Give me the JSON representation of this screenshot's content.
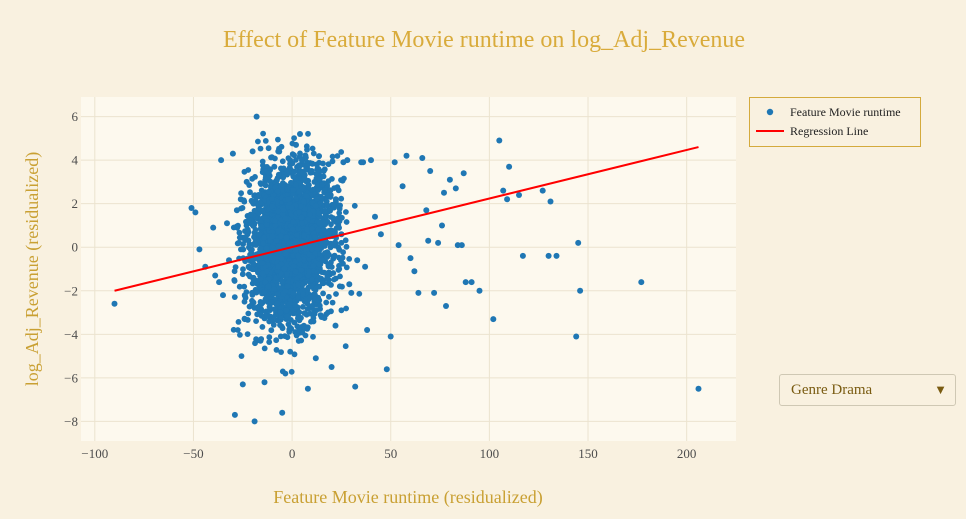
{
  "chart_data": {
    "type": "scatter",
    "title": "Effect of Feature Movie runtime on log_Adj_Revenue",
    "xlabel": "Feature Movie runtime (residualized)",
    "ylabel": "log_Adj_Revenue (residualized)",
    "xlim": [
      -107,
      225
    ],
    "ylim": [
      -8.9,
      6.9
    ],
    "xticks": [
      -100,
      -50,
      0,
      50,
      100,
      150,
      200
    ],
    "xtick_labels": [
      "−100",
      "−50",
      "0",
      "50",
      "100",
      "150",
      "200"
    ],
    "yticks": [
      -8,
      -6,
      -4,
      -2,
      0,
      2,
      4,
      6
    ],
    "ytick_labels": [
      "−8",
      "−6",
      "−4",
      "−2",
      "0",
      "2",
      "4",
      "6"
    ],
    "grid": true,
    "legend_position": "top-right",
    "series": [
      {
        "name": "Feature Movie runtime",
        "kind": "markers",
        "color": "#1f77b4",
        "x": [
          -90,
          -51,
          -49,
          -47,
          -44,
          -40,
          -39,
          -37,
          -36,
          -35,
          -33,
          -32,
          -30,
          -29,
          -27,
          -26,
          -25,
          -24,
          -23,
          -22,
          -21,
          -20,
          -19,
          -18,
          -17,
          -16,
          -14,
          -12,
          -10,
          -9,
          -7,
          -5,
          -3,
          -1,
          2,
          4,
          6,
          8,
          10,
          12,
          14,
          16,
          18,
          20,
          22,
          24,
          26,
          28,
          30,
          32,
          33,
          35,
          36,
          38,
          40,
          42,
          45,
          48,
          50,
          52,
          54,
          56,
          58,
          60,
          62,
          64,
          66,
          68,
          69,
          70,
          72,
          74,
          76,
          77,
          78,
          80,
          83,
          84,
          86,
          87,
          88,
          91,
          95,
          102,
          105,
          107,
          109,
          110,
          115,
          117,
          127,
          130,
          131,
          134,
          144,
          145,
          146,
          177,
          206,
          -10,
          -15,
          5,
          3,
          -2,
          9,
          25,
          37,
          -28,
          -6,
          12,
          29
        ],
        "y": [
          -2.6,
          1.8,
          1.6,
          -0.1,
          -0.9,
          0.9,
          -1.3,
          -1.6,
          4.0,
          -2.2,
          1.1,
          -0.6,
          4.3,
          -7.7,
          0.2,
          2.2,
          -6.3,
          -3.3,
          3.0,
          -0.9,
          1.5,
          4.4,
          -8.0,
          6.0,
          2.4,
          -4.3,
          -6.2,
          -1.8,
          0.7,
          3.7,
          4.4,
          -7.6,
          -2.9,
          4.0,
          4.7,
          5.2,
          2.1,
          -6.5,
          3.5,
          -5.1,
          -0.8,
          3.5,
          2.4,
          -5.5,
          -3.6,
          1.2,
          3.9,
          4.0,
          -2.1,
          -6.4,
          -0.6,
          3.9,
          3.9,
          -3.8,
          4.0,
          1.4,
          0.6,
          -5.6,
          -4.1,
          3.9,
          0.1,
          2.8,
          4.2,
          -0.5,
          -1.1,
          -2.1,
          4.1,
          1.7,
          0.3,
          3.5,
          -2.1,
          0.2,
          1.0,
          2.5,
          -2.7,
          3.1,
          2.7,
          0.1,
          0.1,
          3.4,
          -1.6,
          -1.6,
          -2.0,
          -3.3,
          4.9,
          2.6,
          2.2,
          3.7,
          2.4,
          -0.4,
          2.6,
          -0.4,
          2.1,
          -0.4,
          -4.1,
          0.2,
          -2.0,
          -1.6,
          -6.5,
          0.5,
          -1.2,
          1.1,
          -0.4,
          2.2,
          -2.3,
          0.6,
          -0.9,
          1.7,
          -3.0,
          1.9,
          -1.7
        ]
      },
      {
        "name": "Regression Line",
        "kind": "line",
        "color": "#ff0000",
        "x": [
          -90,
          206
        ],
        "y": [
          -2.0,
          4.6
        ]
      }
    ]
  },
  "dropdown": {
    "selected": "Genre Drama",
    "arrow_icon": "triangle-down-icon"
  },
  "colors": {
    "background": "#f9f1e0",
    "plot_background": "#fdf9ee",
    "title": "#d9ab3b",
    "axis_title": "#c9a033",
    "marker": "#1f77b4",
    "regression": "#ff0000"
  }
}
